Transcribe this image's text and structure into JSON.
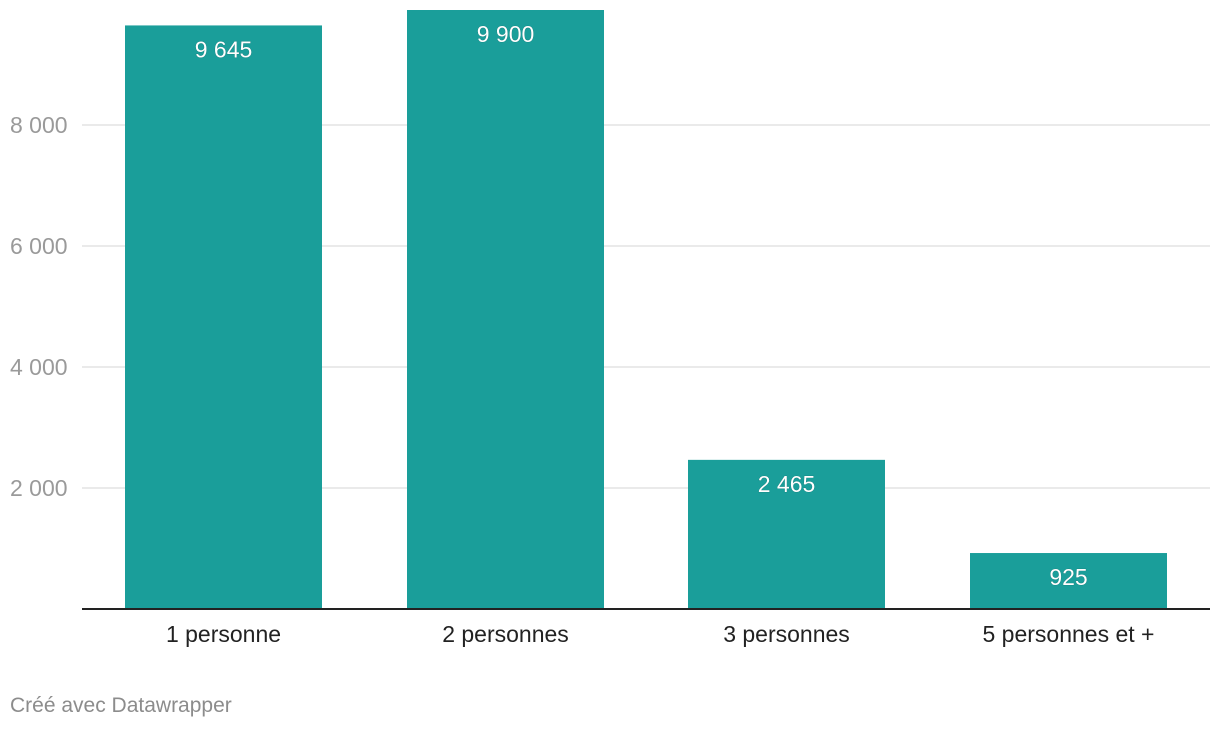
{
  "chart_data": {
    "type": "bar",
    "categories": [
      "1 personne",
      "2 personnes",
      "3 personnes",
      "5 personnes et +"
    ],
    "values": [
      9645,
      9900,
      2465,
      925
    ],
    "value_labels": [
      "9 645",
      "9 900",
      "2 465",
      "925"
    ],
    "y_ticks": [
      2000,
      4000,
      6000,
      8000
    ],
    "y_tick_labels": [
      "2 000",
      "4 000",
      "6 000",
      "8 000"
    ],
    "ylim": [
      0,
      9900
    ],
    "grid": true,
    "bar_color": "#1a9e9a",
    "value_label_color": "#ffffff",
    "tick_label_color": "#9a9a9a",
    "category_label_color": "#222222",
    "gridline_color": "#e3e3e3",
    "baseline_color": "#222222"
  },
  "footer": {
    "credit": "Créé avec Datawrapper"
  }
}
